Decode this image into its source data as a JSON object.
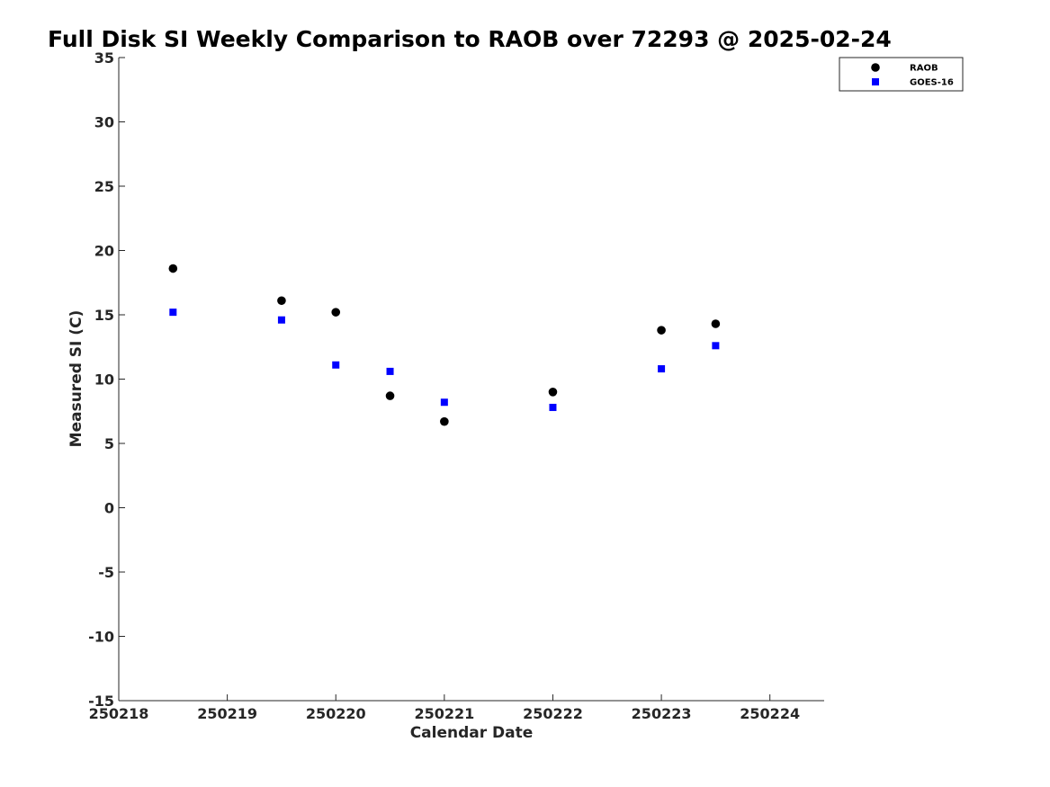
{
  "chart_data": {
    "type": "scatter",
    "title": "Full Disk SI Weekly Comparison to RAOB over 72293 @ 2025-02-24",
    "xlabel": "Calendar Date",
    "ylabel": "Measured SI (C)",
    "xlim": [
      250218,
      250224.5
    ],
    "ylim": [
      -15,
      35
    ],
    "x_ticks": [
      250218,
      250219,
      250220,
      250221,
      250222,
      250223,
      250224
    ],
    "x_tick_labels": [
      "250218",
      "250219",
      "250220",
      "250221",
      "250222",
      "250223",
      "250224"
    ],
    "y_ticks": [
      -15,
      -10,
      -5,
      0,
      5,
      10,
      15,
      20,
      25,
      30,
      35
    ],
    "y_tick_labels": [
      "-15",
      "-10",
      "-5",
      "0",
      "5",
      "10",
      "15",
      "20",
      "25",
      "30",
      "35"
    ],
    "grid": false,
    "legend_position": "top-right",
    "series": [
      {
        "name": "RAOB",
        "marker": "circle",
        "color": "#000000",
        "points": [
          {
            "x": 250218.5,
            "y": 18.6
          },
          {
            "x": 250219.5,
            "y": 16.1
          },
          {
            "x": 250220.0,
            "y": 15.2
          },
          {
            "x": 250220.5,
            "y": 8.7
          },
          {
            "x": 250221.0,
            "y": 6.7
          },
          {
            "x": 250222.0,
            "y": 9.0
          },
          {
            "x": 250223.0,
            "y": 13.8
          },
          {
            "x": 250223.5,
            "y": 14.3
          }
        ]
      },
      {
        "name": "GOES-16",
        "marker": "square",
        "color": "#0000ff",
        "points": [
          {
            "x": 250218.5,
            "y": 15.2
          },
          {
            "x": 250219.5,
            "y": 14.6
          },
          {
            "x": 250220.0,
            "y": 11.1
          },
          {
            "x": 250220.5,
            "y": 10.6
          },
          {
            "x": 250221.0,
            "y": 8.2
          },
          {
            "x": 250222.0,
            "y": 7.8
          },
          {
            "x": 250223.0,
            "y": 10.8
          },
          {
            "x": 250223.5,
            "y": 12.6
          }
        ]
      }
    ]
  }
}
